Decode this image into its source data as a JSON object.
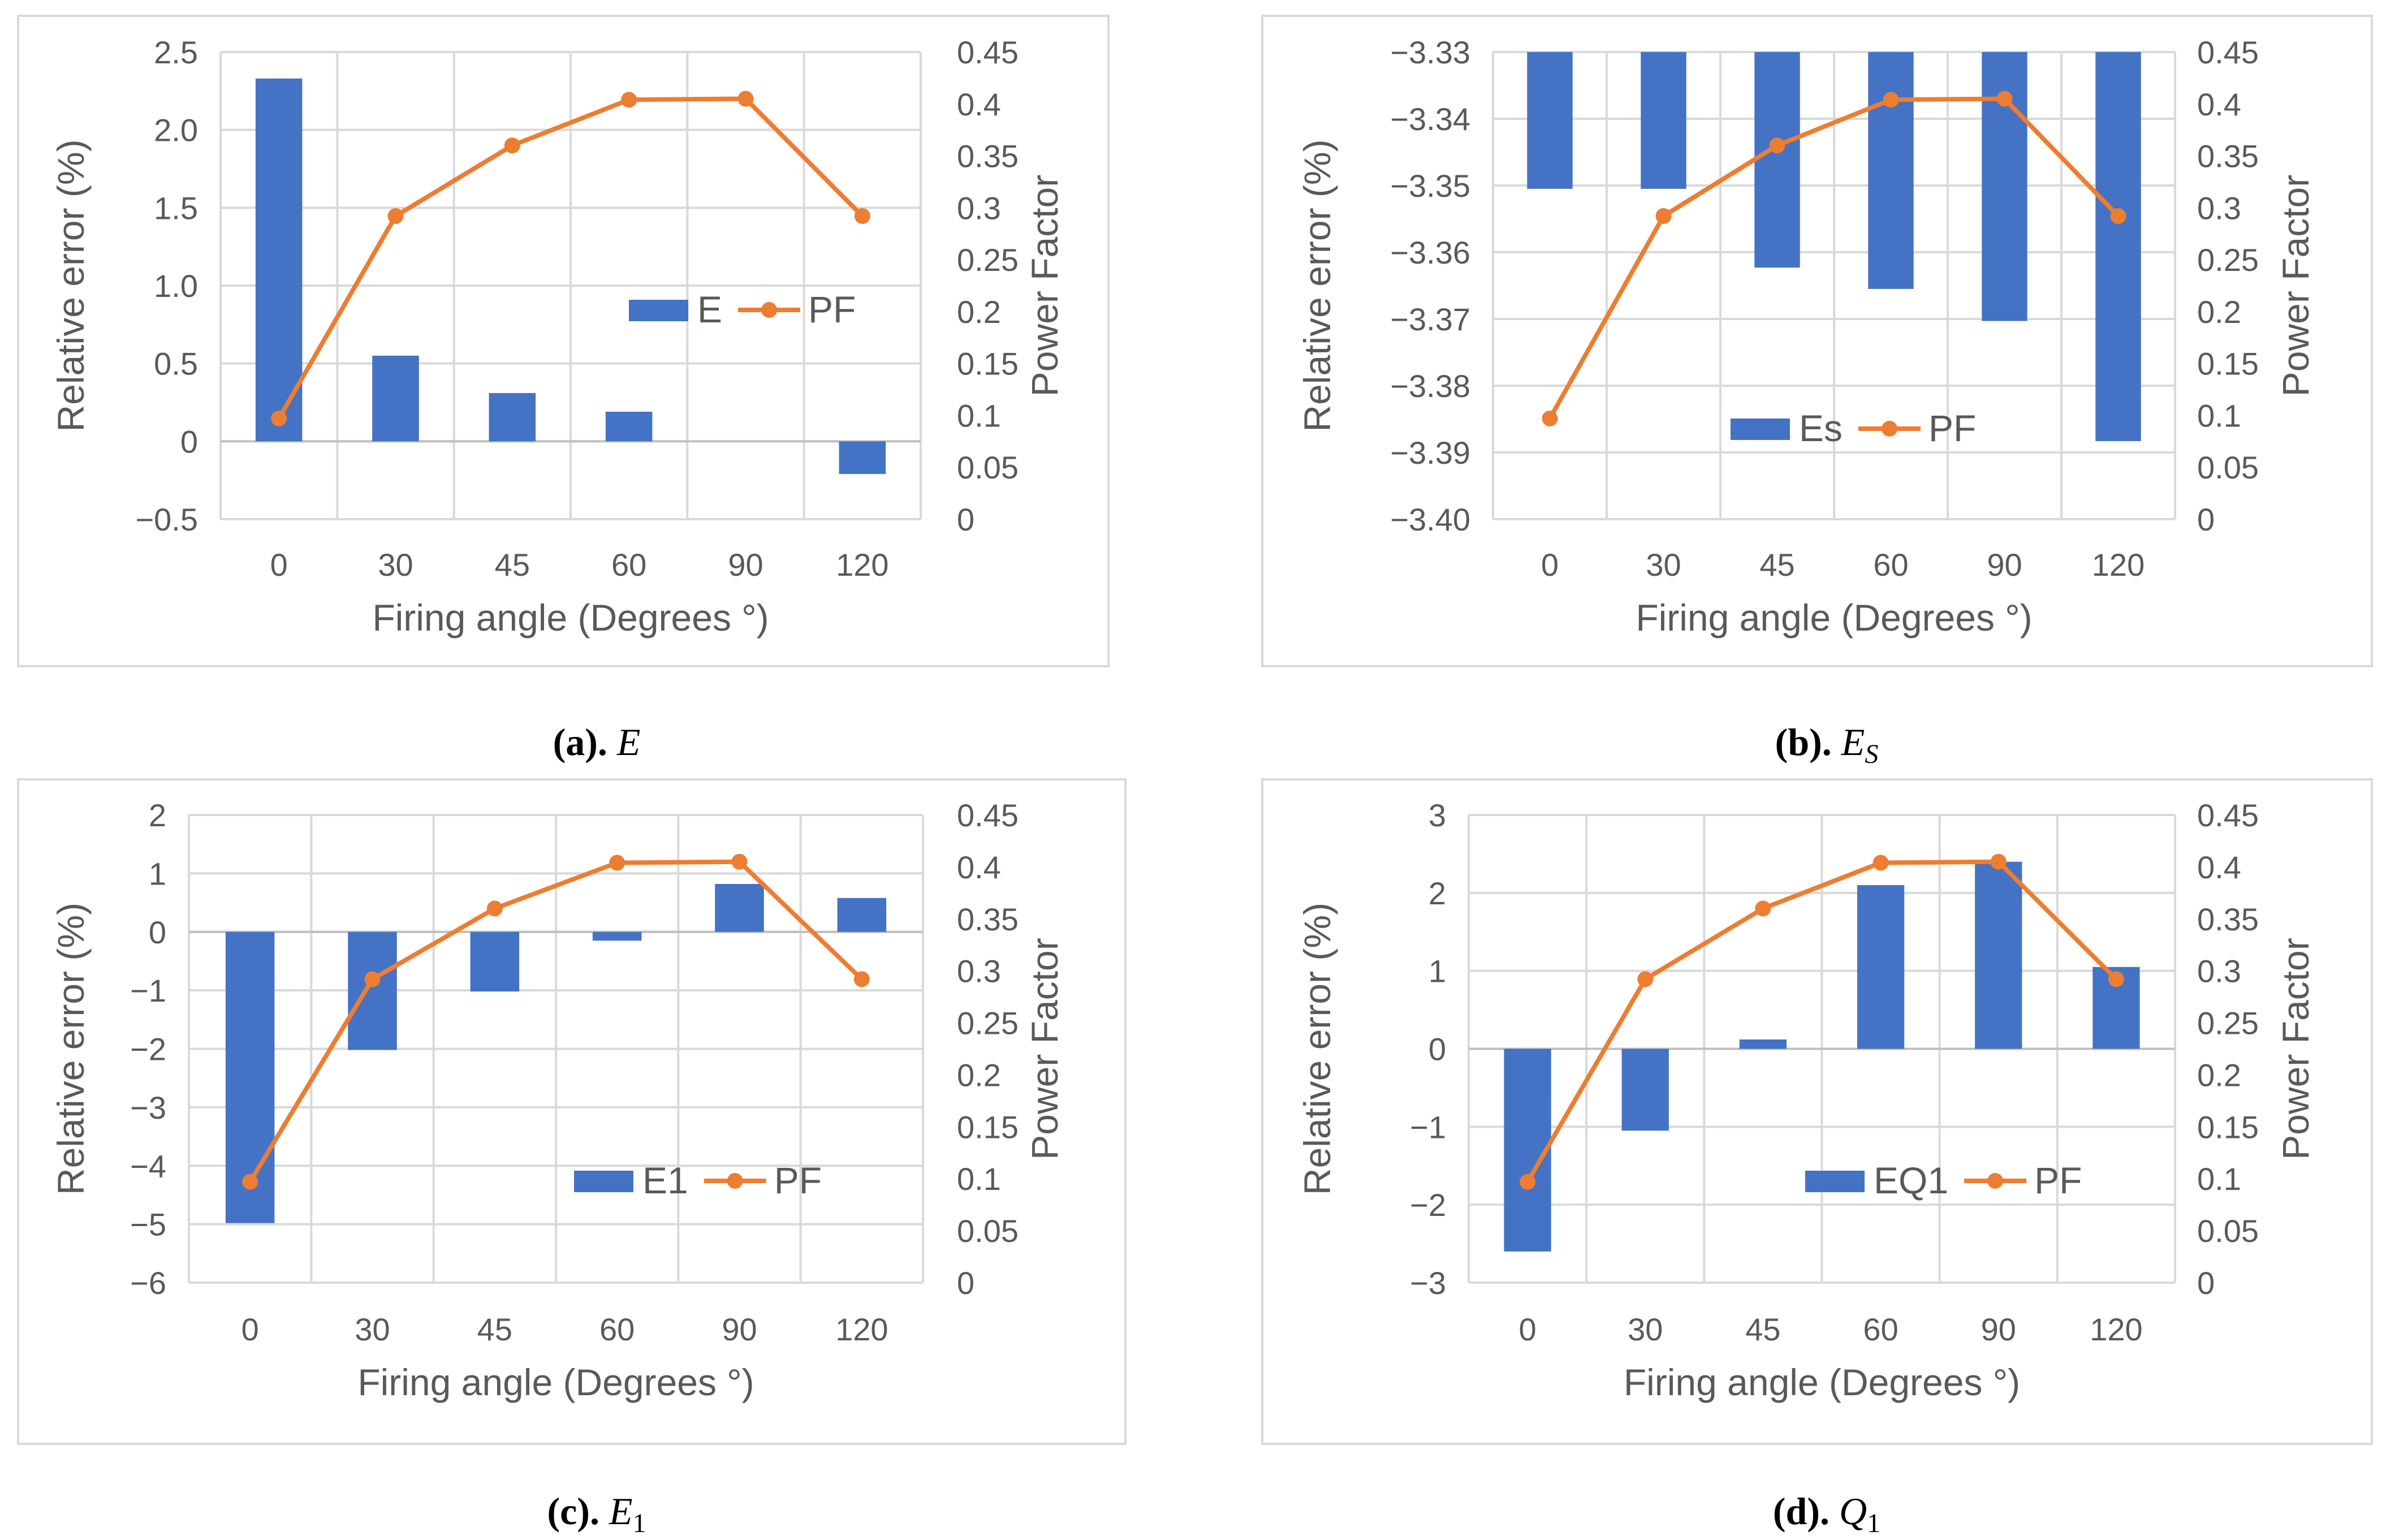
{
  "colors": {
    "bar": "#4472C4",
    "line": "#ED7D31"
  },
  "chart_data": [
    {
      "type": "bar",
      "id": "a",
      "caption": {
        "label": "(a).",
        "symbol": "E",
        "subscript": ""
      },
      "categories": [
        "0",
        "30",
        "45",
        "60",
        "90",
        "120"
      ],
      "series": [
        {
          "name": "E",
          "kind": "bar",
          "axis": "left",
          "values": [
            2.33,
            0.55,
            0.31,
            0.19,
            0.0,
            -0.21
          ]
        },
        {
          "name": "PF",
          "kind": "line",
          "axis": "right",
          "values": [
            0.097,
            0.292,
            0.36,
            0.404,
            0.405,
            0.292
          ]
        }
      ],
      "xlabel": "Firing angle (Degrees °)",
      "ylabel": "Relative error (%)",
      "y2label": "Power Factor",
      "ylim": [
        -0.5,
        2.5
      ],
      "yticks": [
        "−0.5",
        "0",
        "0.5",
        "1.0",
        "1.5",
        "2.0",
        "2.5"
      ],
      "y2lim": [
        0,
        0.45
      ],
      "y2ticks": [
        "0",
        "0.05",
        "0.1",
        "0.15",
        "0.2",
        "0.25",
        "0.3",
        "0.35",
        "0.4",
        "0.45"
      ],
      "legend_position": "center-right"
    },
    {
      "type": "bar",
      "id": "b",
      "caption": {
        "label": "(b).",
        "symbol": "E",
        "subscript": "S"
      },
      "categories": [
        "0",
        "30",
        "45",
        "60",
        "90",
        "120"
      ],
      "series": [
        {
          "name": "Es",
          "kind": "bar",
          "axis": "left",
          "values": [
            -3.3505,
            -3.3505,
            -3.3623,
            -3.3655,
            -3.3703,
            -3.3883
          ]
        },
        {
          "name": "PF",
          "kind": "line",
          "axis": "right",
          "values": [
            0.097,
            0.292,
            0.36,
            0.404,
            0.405,
            0.292
          ]
        }
      ],
      "xlabel": "Firing angle (Degrees °)",
      "ylabel": "Relative error (%)",
      "y2label": "Power Factor",
      "ylim": [
        -3.4,
        -3.33
      ],
      "yticks": [
        "−3.40",
        "−3.39",
        "−3.38",
        "−3.37",
        "−3.36",
        "−3.35",
        "−3.34",
        "−3.33"
      ],
      "y2lim": [
        0,
        0.45
      ],
      "y2ticks": [
        "0",
        "0.05",
        "0.1",
        "0.15",
        "0.2",
        "0.25",
        "0.3",
        "0.35",
        "0.4",
        "0.45"
      ],
      "legend_position": "lower-center"
    },
    {
      "type": "bar",
      "id": "c",
      "caption": {
        "label": "(c).",
        "symbol": "E",
        "subscript": "1"
      },
      "categories": [
        "0",
        "30",
        "45",
        "60",
        "90",
        "120"
      ],
      "series": [
        {
          "name": "E1",
          "kind": "bar",
          "axis": "left",
          "values": [
            -4.98,
            -2.02,
            -1.02,
            -0.15,
            0.82,
            0.58
          ]
        },
        {
          "name": "PF",
          "kind": "line",
          "axis": "right",
          "values": [
            0.097,
            0.292,
            0.36,
            0.404,
            0.405,
            0.292
          ]
        }
      ],
      "xlabel": "Firing angle (Degrees °)",
      "ylabel": "Relative error (%)",
      "y2label": "Power Factor",
      "ylim": [
        -6,
        2
      ],
      "yticks": [
        "−6",
        "−5",
        "−4",
        "−3",
        "−2",
        "−1",
        "0",
        "1",
        "2"
      ],
      "y2lim": [
        0,
        0.45
      ],
      "y2ticks": [
        "0",
        "0.05",
        "0.1",
        "0.15",
        "0.2",
        "0.25",
        "0.3",
        "0.35",
        "0.4",
        "0.45"
      ],
      "legend_position": "lower-right"
    },
    {
      "type": "bar",
      "id": "d",
      "caption": {
        "label": "(d).",
        "symbol": "Q",
        "subscript": "1"
      },
      "categories": [
        "0",
        "30",
        "45",
        "60",
        "90",
        "120"
      ],
      "series": [
        {
          "name": "EQ1",
          "kind": "bar",
          "axis": "left",
          "values": [
            -2.6,
            -1.05,
            0.12,
            2.1,
            2.4,
            1.05
          ]
        },
        {
          "name": "PF",
          "kind": "line",
          "axis": "right",
          "values": [
            0.097,
            0.292,
            0.36,
            0.404,
            0.405,
            0.292
          ]
        }
      ],
      "xlabel": "Firing angle (Degrees °)",
      "ylabel": "Relative error (%)",
      "y2label": "Power Factor",
      "ylim": [
        -3,
        3
      ],
      "yticks": [
        "−3",
        "−2",
        "−1",
        "0",
        "1",
        "2",
        "3"
      ],
      "y2lim": [
        0,
        0.45
      ],
      "y2ticks": [
        "0",
        "0.05",
        "0.1",
        "0.15",
        "0.2",
        "0.25",
        "0.3",
        "0.35",
        "0.4",
        "0.45"
      ],
      "legend_position": "lower-right"
    }
  ]
}
